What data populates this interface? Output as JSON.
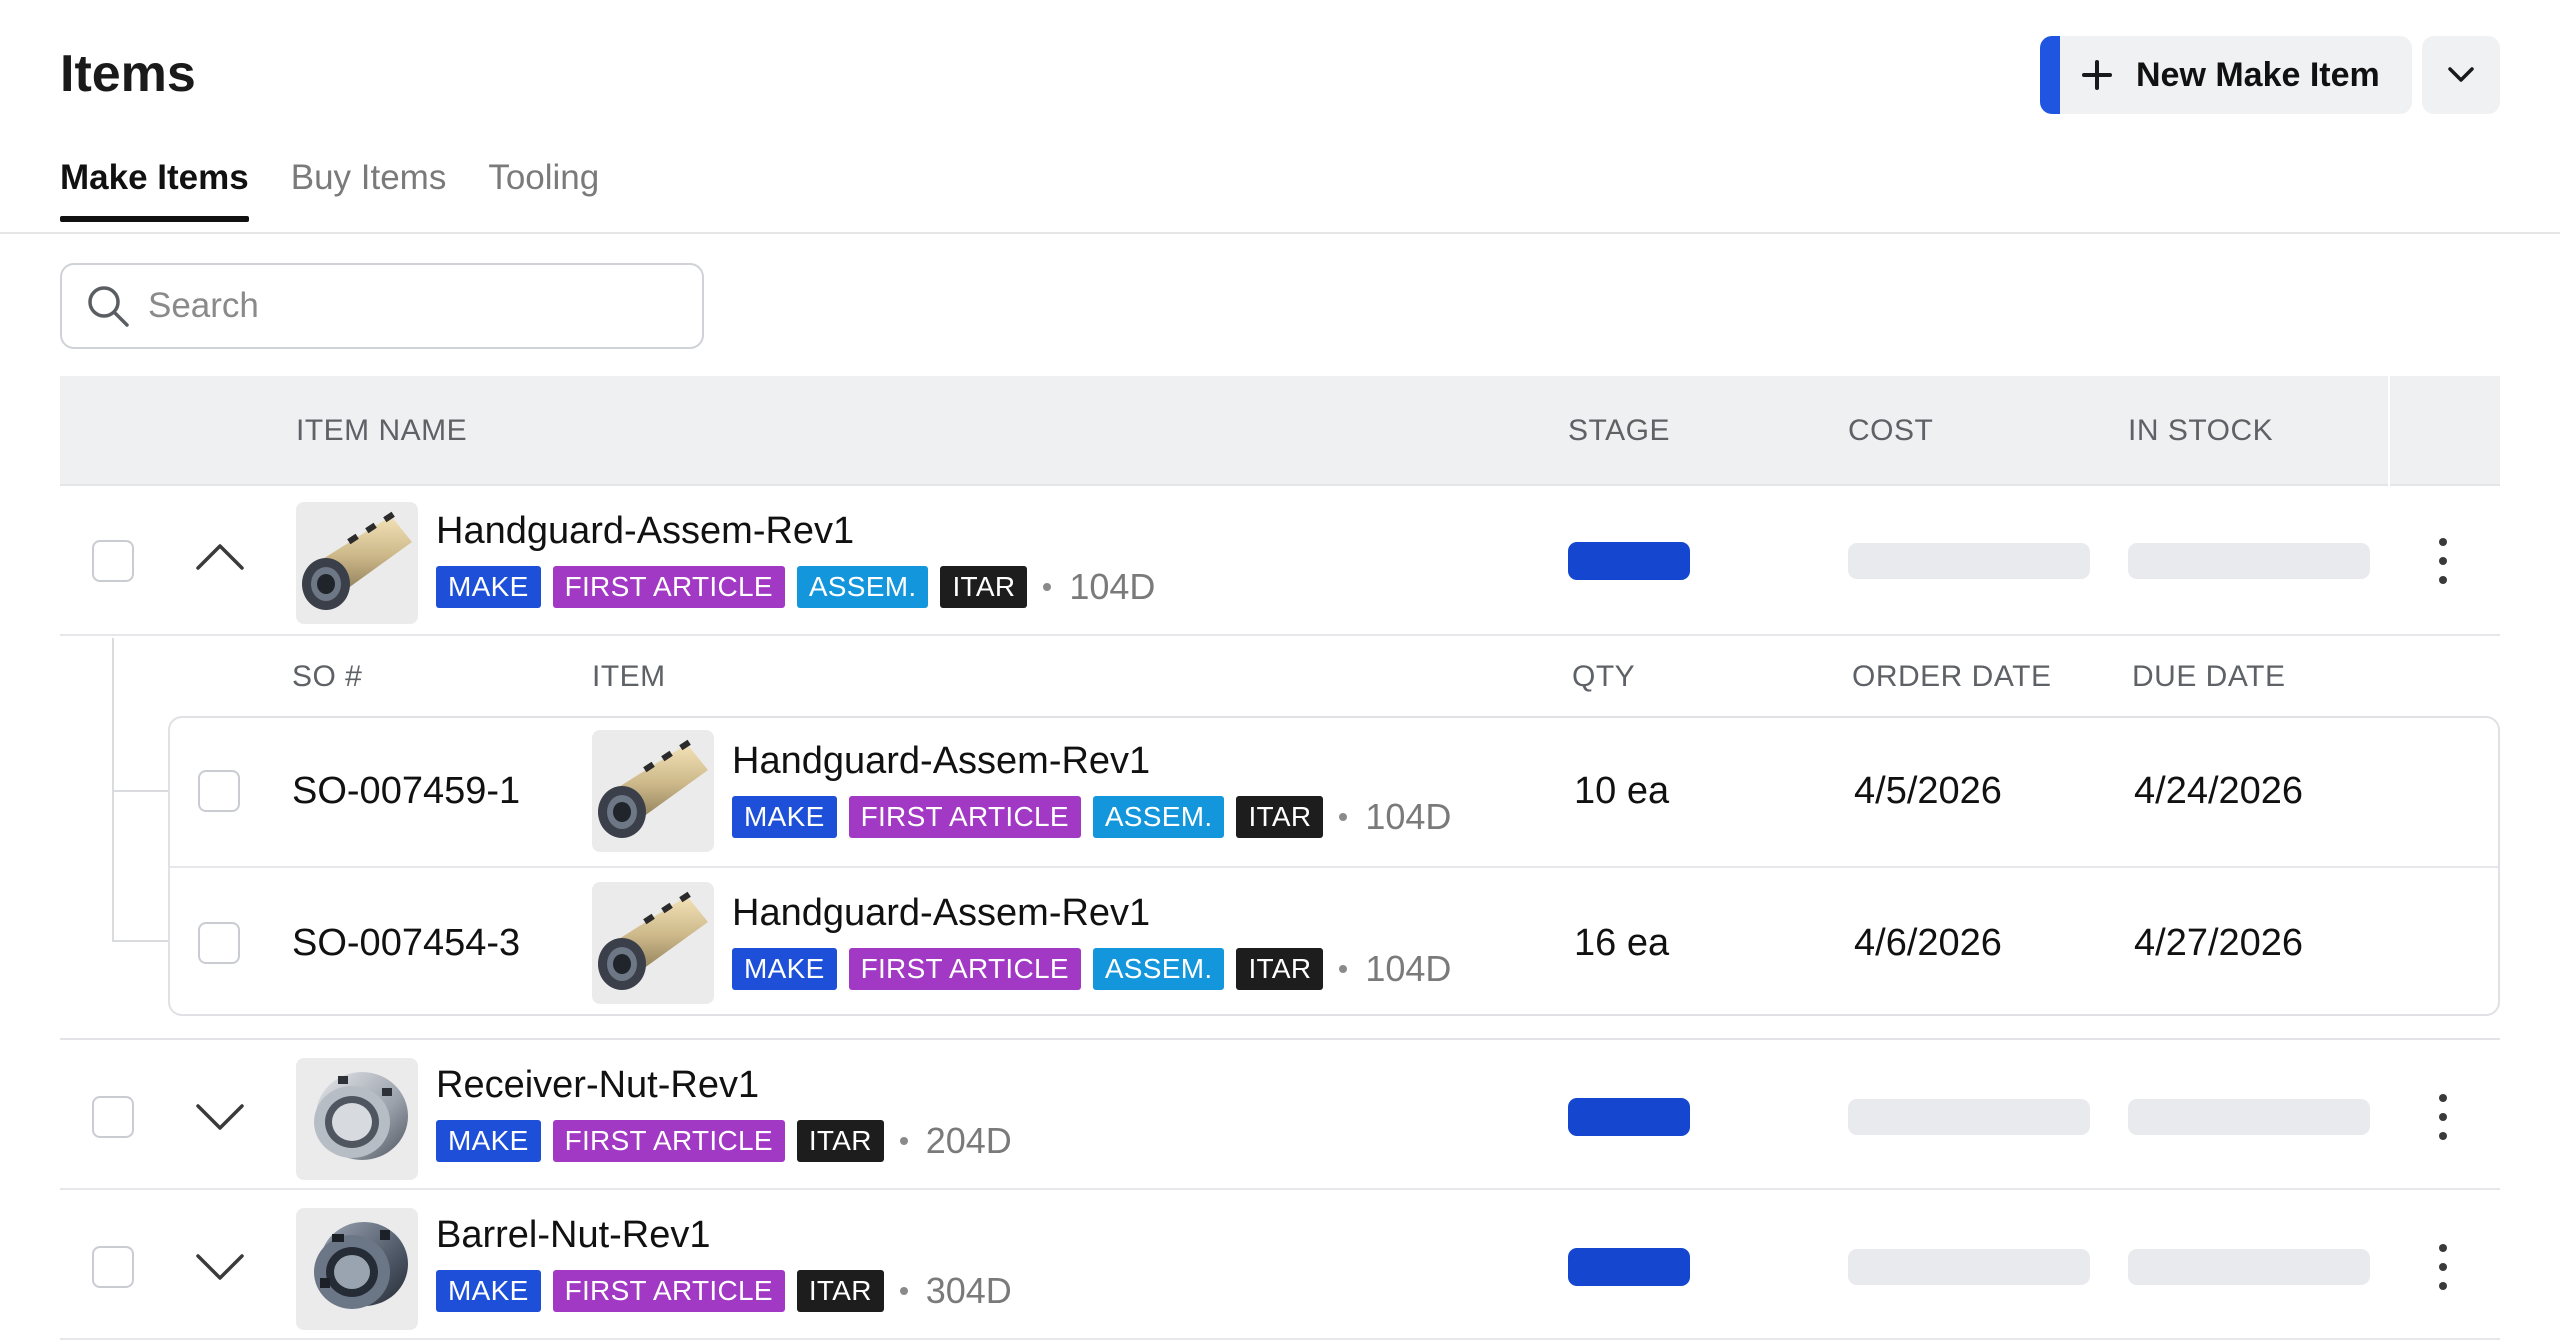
{
  "header": {
    "title": "Items",
    "new_button_label": "New Make Item"
  },
  "tabs": [
    {
      "label": "Make Items",
      "active": true
    },
    {
      "label": "Buy Items",
      "active": false
    },
    {
      "label": "Tooling",
      "active": false
    }
  ],
  "search": {
    "placeholder": "Search",
    "value": ""
  },
  "table": {
    "columns": [
      "ITEM NAME",
      "STAGE",
      "COST",
      "IN STOCK"
    ],
    "sub_columns": [
      "SO #",
      "ITEM",
      "QTY",
      "ORDER DATE",
      "DUE DATE"
    ],
    "rows": [
      {
        "name": "Handguard-Assem-Rev1",
        "tags": [
          "MAKE",
          "FIRST ARTICLE",
          "ASSEM.",
          "ITAR"
        ],
        "lead_time": "104D",
        "expanded": true,
        "sales_orders": [
          {
            "so": "SO-007459-1",
            "item_name": "Handguard-Assem-Rev1",
            "tags": [
              "MAKE",
              "FIRST ARTICLE",
              "ASSEM.",
              "ITAR"
            ],
            "lead_time": "104D",
            "qty": "10 ea",
            "order_date": "4/5/2026",
            "due_date": "4/24/2026"
          },
          {
            "so": "SO-007454-3",
            "item_name": "Handguard-Assem-Rev1",
            "tags": [
              "MAKE",
              "FIRST ARTICLE",
              "ASSEM.",
              "ITAR"
            ],
            "lead_time": "104D",
            "qty": "16 ea",
            "order_date": "4/6/2026",
            "due_date": "4/27/2026"
          }
        ]
      },
      {
        "name": "Receiver-Nut-Rev1",
        "tags": [
          "MAKE",
          "FIRST ARTICLE",
          "ITAR"
        ],
        "lead_time": "204D",
        "expanded": false
      },
      {
        "name": "Barrel-Nut-Rev1",
        "tags": [
          "MAKE",
          "FIRST ARTICLE",
          "ITAR"
        ],
        "lead_time": "304D",
        "expanded": false
      }
    ]
  },
  "colors": {
    "accent": "#1f55e0",
    "stage": "#1446cf",
    "tag_make": "#1d4fd8",
    "tag_first_article": "#a239c5",
    "tag_assem": "#1496dc",
    "tag_itar": "#1d1d1d"
  }
}
